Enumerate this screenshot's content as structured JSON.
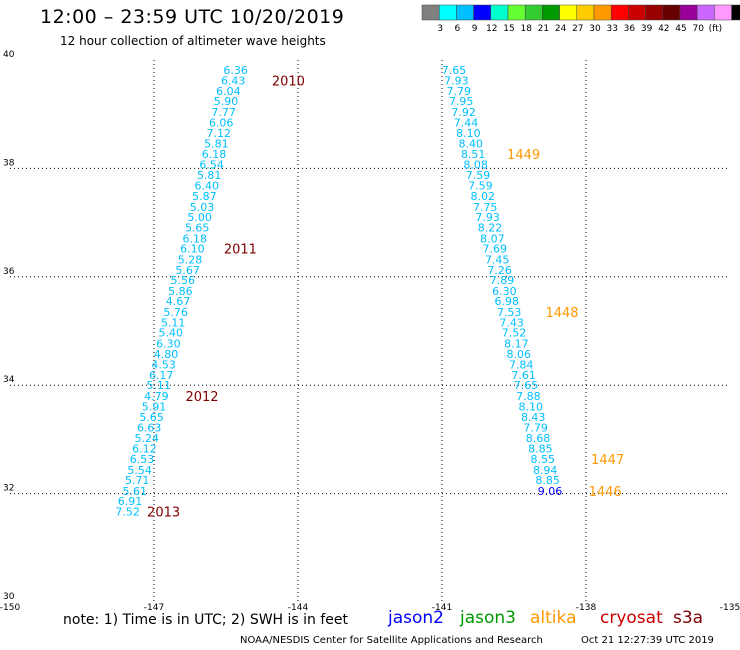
{
  "header": {
    "title": "12:00 – 23:59 UTC 10/20/2019",
    "subtitle": "12 hour collection of altimeter wave heights"
  },
  "legend": {
    "colors": [
      "#808080",
      "#00ffff",
      "#00bfff",
      "#0000ff",
      "#00ffcc",
      "#66ff33",
      "#33cc33",
      "#009900",
      "#ffff00",
      "#ffcc00",
      "#ff9900",
      "#ff0000",
      "#cc0000",
      "#990000",
      "#660000",
      "#990099",
      "#cc66ff",
      "#ff99ff",
      "#000000"
    ],
    "labels": [
      "3",
      "6",
      "9",
      "12",
      "15",
      "18",
      "21",
      "24",
      "27",
      "30",
      "33",
      "36",
      "39",
      "42",
      "45",
      "70",
      "(ft)"
    ]
  },
  "chart_data": {
    "type": "scatter",
    "title": "12:00 – 23:59 UTC 10/20/2019",
    "subtitle": "12 hour collection of altimeter wave heights",
    "xlim": [
      -150,
      -135
    ],
    "ylim": [
      30,
      40
    ],
    "x_ticks": [
      -150,
      -147,
      -144,
      -141,
      -138,
      -135
    ],
    "y_ticks": [
      30,
      32,
      34,
      36,
      38,
      40
    ],
    "x_tick_labels": [
      "-150",
      "-147",
      "-144",
      "-141",
      "-138",
      "-135"
    ],
    "y_tick_labels": [
      "30",
      "32",
      "34",
      "36",
      "38",
      "40"
    ],
    "grid": true,
    "series": [
      {
        "name": "cryosat",
        "color": "#00bfff",
        "points": [
          {
            "lon": -145.3,
            "lat": 39.82,
            "swh": "6.36"
          },
          {
            "lon": -145.35,
            "lat": 39.62,
            "swh": "6.43"
          },
          {
            "lon": -145.45,
            "lat": 39.43,
            "swh": "6.04"
          },
          {
            "lon": -145.5,
            "lat": 39.24,
            "swh": "5.90"
          },
          {
            "lon": -145.55,
            "lat": 39.04,
            "swh": "7.77"
          },
          {
            "lon": -145.6,
            "lat": 38.85,
            "swh": "6.06"
          },
          {
            "lon": -145.65,
            "lat": 38.65,
            "swh": "7.12"
          },
          {
            "lon": -145.7,
            "lat": 38.46,
            "swh": "5.81"
          },
          {
            "lon": -145.75,
            "lat": 38.27,
            "swh": "6.18"
          },
          {
            "lon": -145.8,
            "lat": 38.07,
            "swh": "6.54"
          },
          {
            "lon": -145.85,
            "lat": 37.88,
            "swh": "5.81"
          },
          {
            "lon": -145.9,
            "lat": 37.68,
            "swh": "6.40"
          },
          {
            "lon": -145.95,
            "lat": 37.49,
            "swh": "5.87"
          },
          {
            "lon": -146.0,
            "lat": 37.29,
            "swh": "5.03"
          },
          {
            "lon": -146.05,
            "lat": 37.1,
            "swh": "5.00"
          },
          {
            "lon": -146.1,
            "lat": 36.91,
            "swh": "5.65"
          },
          {
            "lon": -146.15,
            "lat": 36.71,
            "swh": "6.18"
          },
          {
            "lon": -146.2,
            "lat": 36.52,
            "swh": "6.10"
          },
          {
            "lon": -146.25,
            "lat": 36.32,
            "swh": "5.28"
          },
          {
            "lon": -146.3,
            "lat": 36.13,
            "swh": "5.67"
          },
          {
            "lon": -146.4,
            "lat": 35.94,
            "swh": "5.56"
          },
          {
            "lon": -146.45,
            "lat": 35.74,
            "swh": "5.86"
          },
          {
            "lon": -146.5,
            "lat": 35.55,
            "swh": "4.67"
          },
          {
            "lon": -146.55,
            "lat": 35.35,
            "swh": "5.76"
          },
          {
            "lon": -146.6,
            "lat": 35.16,
            "swh": "5.11"
          },
          {
            "lon": -146.65,
            "lat": 34.97,
            "swh": "5.40"
          },
          {
            "lon": -146.7,
            "lat": 34.77,
            "swh": "6.30"
          },
          {
            "lon": -146.75,
            "lat": 34.58,
            "swh": "4.80"
          },
          {
            "lon": -146.8,
            "lat": 34.38,
            "swh": "4.53"
          },
          {
            "lon": -146.85,
            "lat": 34.19,
            "swh": "6.17"
          },
          {
            "lon": -146.9,
            "lat": 34.0,
            "swh": "5.11"
          },
          {
            "lon": -146.95,
            "lat": 33.8,
            "swh": "4.79"
          },
          {
            "lon": -147.0,
            "lat": 33.61,
            "swh": "5.91"
          },
          {
            "lon": -147.05,
            "lat": 33.41,
            "swh": "5.65"
          },
          {
            "lon": -147.1,
            "lat": 33.22,
            "swh": "6.63"
          },
          {
            "lon": -147.15,
            "lat": 33.03,
            "swh": "5.24"
          },
          {
            "lon": -147.2,
            "lat": 32.83,
            "swh": "6.12"
          },
          {
            "lon": -147.25,
            "lat": 32.64,
            "swh": "6.53"
          },
          {
            "lon": -147.3,
            "lat": 32.44,
            "swh": "5.54"
          },
          {
            "lon": -147.35,
            "lat": 32.25,
            "swh": "5.71"
          },
          {
            "lon": -147.4,
            "lat": 32.05,
            "swh": "5.61"
          },
          {
            "lon": -147.5,
            "lat": 31.86,
            "swh": "6.91"
          },
          {
            "lon": -147.55,
            "lat": 31.67,
            "swh": "7.52"
          }
        ]
      },
      {
        "name": "cryosat",
        "color": "#00bfff",
        "points": [
          {
            "lon": -140.75,
            "lat": 39.82,
            "swh": "7.65"
          },
          {
            "lon": -140.7,
            "lat": 39.62,
            "swh": "7.93"
          },
          {
            "lon": -140.65,
            "lat": 39.43,
            "swh": "7.79"
          },
          {
            "lon": -140.6,
            "lat": 39.24,
            "swh": "7.95"
          },
          {
            "lon": -140.55,
            "lat": 39.04,
            "swh": "7.92"
          },
          {
            "lon": -140.5,
            "lat": 38.85,
            "swh": "7.44"
          },
          {
            "lon": -140.45,
            "lat": 38.65,
            "swh": "8.10"
          },
          {
            "lon": -140.4,
            "lat": 38.46,
            "swh": "8.40"
          },
          {
            "lon": -140.35,
            "lat": 38.27,
            "swh": "8.51"
          },
          {
            "lon": -140.3,
            "lat": 38.07,
            "swh": "8.08"
          },
          {
            "lon": -140.25,
            "lat": 37.88,
            "swh": "7.59"
          },
          {
            "lon": -140.2,
            "lat": 37.68,
            "swh": "7.59"
          },
          {
            "lon": -140.15,
            "lat": 37.49,
            "swh": "8.02"
          },
          {
            "lon": -140.1,
            "lat": 37.29,
            "swh": "7.75"
          },
          {
            "lon": -140.05,
            "lat": 37.1,
            "swh": "7.93"
          },
          {
            "lon": -140.0,
            "lat": 36.91,
            "swh": "8.22"
          },
          {
            "lon": -139.95,
            "lat": 36.71,
            "swh": "8.07"
          },
          {
            "lon": -139.9,
            "lat": 36.52,
            "swh": "7.69"
          },
          {
            "lon": -139.85,
            "lat": 36.32,
            "swh": "7.45"
          },
          {
            "lon": -139.8,
            "lat": 36.13,
            "swh": "7.26"
          },
          {
            "lon": -139.75,
            "lat": 35.94,
            "swh": "7.89"
          },
          {
            "lon": -139.7,
            "lat": 35.74,
            "swh": "6.30"
          },
          {
            "lon": -139.65,
            "lat": 35.55,
            "swh": "6.98"
          },
          {
            "lon": -139.6,
            "lat": 35.35,
            "swh": "7.53"
          },
          {
            "lon": -139.55,
            "lat": 35.16,
            "swh": "7.43"
          },
          {
            "lon": -139.5,
            "lat": 34.97,
            "swh": "7.52"
          },
          {
            "lon": -139.45,
            "lat": 34.77,
            "swh": "8.17"
          },
          {
            "lon": -139.4,
            "lat": 34.58,
            "swh": "8.06"
          },
          {
            "lon": -139.35,
            "lat": 34.38,
            "swh": "7.84"
          },
          {
            "lon": -139.3,
            "lat": 34.19,
            "swh": "7.61"
          },
          {
            "lon": -139.25,
            "lat": 34.0,
            "swh": "7.65"
          },
          {
            "lon": -139.2,
            "lat": 33.8,
            "swh": "7.88"
          },
          {
            "lon": -139.15,
            "lat": 33.61,
            "swh": "8.10"
          },
          {
            "lon": -139.1,
            "lat": 33.41,
            "swh": "8.43"
          },
          {
            "lon": -139.05,
            "lat": 33.22,
            "swh": "7.79"
          },
          {
            "lon": -139.0,
            "lat": 33.03,
            "swh": "8.68"
          },
          {
            "lon": -138.95,
            "lat": 32.83,
            "swh": "8.85"
          },
          {
            "lon": -138.9,
            "lat": 32.64,
            "swh": "8.55"
          },
          {
            "lon": -138.85,
            "lat": 32.44,
            "swh": "8.94"
          },
          {
            "lon": -138.8,
            "lat": 32.25,
            "swh": "8.85"
          },
          {
            "lon": -138.75,
            "lat": 32.05,
            "swh": "9.06",
            "color": "#0000ff"
          }
        ]
      }
    ],
    "annotations": [
      {
        "text": "2010",
        "lon": -144.2,
        "lat": 39.62,
        "color": "#800000"
      },
      {
        "text": "2011",
        "lon": -145.2,
        "lat": 36.52,
        "color": "#800000"
      },
      {
        "text": "2012",
        "lon": -146.0,
        "lat": 33.8,
        "color": "#800000"
      },
      {
        "text": "2013",
        "lon": -146.8,
        "lat": 31.67,
        "color": "#800000"
      },
      {
        "text": "1449",
        "lon": -139.3,
        "lat": 38.27,
        "color": "#ff9900"
      },
      {
        "text": "1448",
        "lon": -138.5,
        "lat": 35.35,
        "color": "#ff9900"
      },
      {
        "text": "1447",
        "lon": -137.55,
        "lat": 32.64,
        "color": "#ff9900"
      },
      {
        "text": "1446",
        "lon": -137.6,
        "lat": 32.05,
        "color": "#ff9900"
      }
    ]
  },
  "footer": {
    "note": "note:  1) Time is in UTC;  2) SWH is in feet",
    "satellites": [
      {
        "name": "jason2",
        "color": "#0000ff"
      },
      {
        "name": "jason3",
        "color": "#009900"
      },
      {
        "name": "altika",
        "color": "#ff9900"
      },
      {
        "name": "cryosat",
        "color": "#cc0000"
      },
      {
        "name": "s3a",
        "color": "#800000"
      }
    ],
    "credit": "NOAA/NESDIS Center for Satellite Applications and Research",
    "timestamp": "Oct 21 12:27:39 UTC 2019"
  }
}
